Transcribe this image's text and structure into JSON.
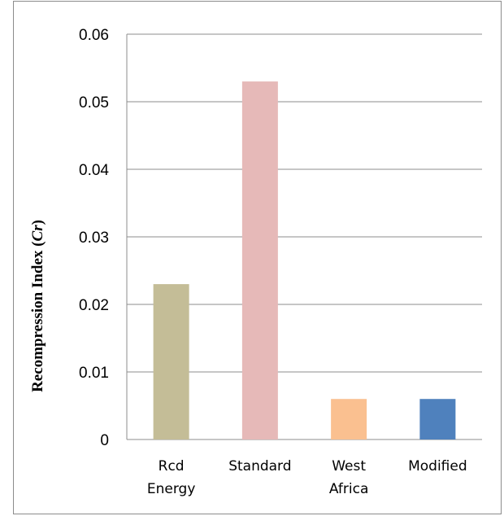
{
  "chart_data": {
    "type": "bar",
    "categories": [
      [
        "Rcd",
        "Energy"
      ],
      [
        "Standard"
      ],
      [
        "West",
        "Africa"
      ],
      [
        "Modified"
      ]
    ],
    "values": [
      0.023,
      0.053,
      0.006,
      0.006
    ],
    "colors": [
      "#c4bd97",
      "#e6b9b8",
      "#fac090",
      "#4f81bd"
    ],
    "ylabel": "Recompression Index (",
    "ylabel_symbol": "Cr",
    "ylabel_close": ")",
    "ylim": [
      0,
      0.06
    ],
    "yticks": [
      0,
      0.01,
      0.02,
      0.03,
      0.04,
      0.05,
      0.06
    ],
    "ytick_labels": [
      "0",
      "0.01",
      "0.02",
      "0.03",
      "0.04",
      "0.05",
      "0.06"
    ],
    "grid": true,
    "gridline_color": "#8c8c8c"
  }
}
